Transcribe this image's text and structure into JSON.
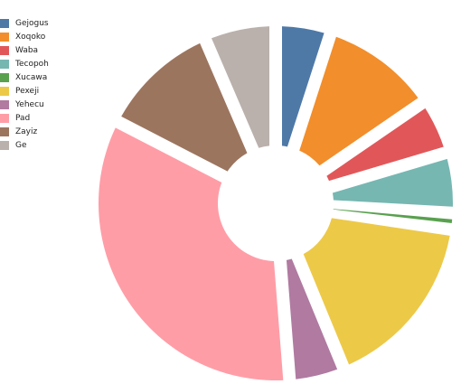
{
  "chart_data": {
    "type": "pie",
    "style": "donut",
    "title": "",
    "legend_position": "top-left",
    "slices": [
      {
        "label": "Gejogus",
        "value": 5.0,
        "color": "#4e79a7"
      },
      {
        "label": "Xoqoko",
        "value": 10.5,
        "color": "#f28e2b"
      },
      {
        "label": "Waba",
        "value": 5.0,
        "color": "#e15759"
      },
      {
        "label": "Tecopoh",
        "value": 5.5,
        "color": "#76b7b2"
      },
      {
        "label": "Xucawa",
        "value": 1.5,
        "color": "#59a14f"
      },
      {
        "label": "Pexeji",
        "value": 16.5,
        "color": "#edc948"
      },
      {
        "label": "Yehecu",
        "value": 5.0,
        "color": "#b07aa1"
      },
      {
        "label": "Pad",
        "value": 34.0,
        "color": "#ff9da7"
      },
      {
        "label": "Zayiz",
        "value": 11.0,
        "color": "#9c755f"
      },
      {
        "label": "Ge",
        "value": 6.5,
        "color": "#bab0ac"
      }
    ]
  }
}
